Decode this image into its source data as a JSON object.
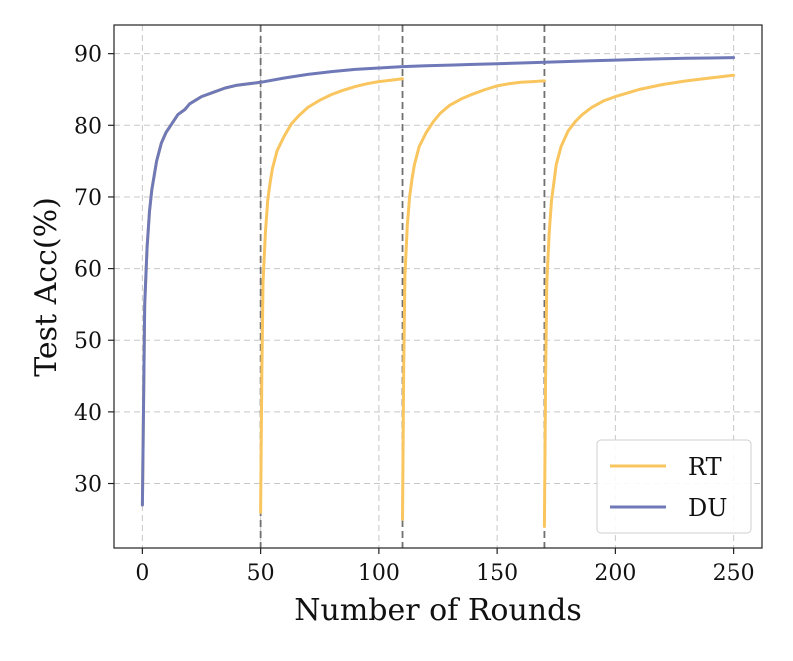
{
  "chart_data": {
    "type": "line",
    "title": "",
    "xlabel": "Number of Rounds",
    "ylabel": "Test Acc(%)",
    "xlim": [
      -12,
      262
    ],
    "ylim": [
      21,
      94
    ],
    "xticks": [
      0,
      50,
      100,
      150,
      200,
      250
    ],
    "yticks": [
      30,
      40,
      50,
      60,
      70,
      80,
      90
    ],
    "grid": true,
    "legend_position": "bottom-right",
    "vertical_lines": [
      50,
      110,
      170
    ],
    "series": [
      {
        "name": "RT",
        "color": "#F9C55F",
        "segments": [
          {
            "x": [
              0,
              1,
              2,
              3,
              4,
              5,
              6,
              8,
              10,
              12,
              15,
              18,
              20,
              25,
              30,
              35,
              40,
              45,
              50
            ],
            "y": [
              27,
              55,
              63,
              68,
              71,
              73,
              75,
              77.5,
              79,
              80,
              81.5,
              82.2,
              83,
              84,
              84.6,
              85.2,
              85.6,
              85.8,
              86
            ]
          },
          {
            "x": [
              50,
              50.5,
              51,
              52,
              53,
              54,
              55,
              57,
              60,
              63,
              66,
              70,
              75,
              80,
              85,
              90,
              95,
              100,
              105,
              110
            ],
            "y": [
              26,
              45,
              58,
              65,
              69.5,
              72,
              74,
              76.5,
              78.5,
              80.2,
              81.3,
              82.5,
              83.5,
              84.3,
              84.9,
              85.4,
              85.8,
              86.1,
              86.3,
              86.5
            ]
          },
          {
            "x": [
              110,
              110.5,
              111,
              112,
              113,
              114,
              115,
              117,
              120,
              123,
              126,
              130,
              135,
              140,
              145,
              150,
              155,
              160,
              165,
              170
            ],
            "y": [
              25,
              46,
              59,
              66,
              70,
              72.5,
              74.5,
              77,
              79,
              80.5,
              81.7,
              82.8,
              83.7,
              84.4,
              85,
              85.5,
              85.8,
              86,
              86.1,
              86.2
            ]
          },
          {
            "x": [
              170,
              170.5,
              171,
              172,
              173,
              174,
              175,
              177,
              180,
              183,
              186,
              190,
              195,
              200,
              210,
              220,
              230,
              240,
              250
            ],
            "y": [
              24,
              45,
              58,
              65,
              69.5,
              72,
              74.5,
              77,
              79.2,
              80.5,
              81.5,
              82.5,
              83.4,
              84,
              85,
              85.7,
              86.2,
              86.6,
              87
            ]
          }
        ]
      },
      {
        "name": "DU",
        "color": "#6F79B8",
        "segments": [
          {
            "x": [
              0,
              1,
              2,
              3,
              4,
              5,
              6,
              8,
              10,
              12,
              15,
              18,
              20,
              25,
              30,
              35,
              40,
              45,
              50,
              60,
              70,
              80,
              90,
              100,
              110,
              120,
              130,
              140,
              150,
              160,
              170,
              180,
              190,
              200,
              210,
              220,
              230,
              240,
              250
            ],
            "y": [
              27,
              55,
              63,
              68,
              71,
              73,
              75,
              77.5,
              79,
              80,
              81.5,
              82.2,
              83,
              84,
              84.6,
              85.2,
              85.6,
              85.8,
              86,
              86.6,
              87.1,
              87.5,
              87.8,
              88,
              88.2,
              88.3,
              88.4,
              88.5,
              88.6,
              88.7,
              88.8,
              88.9,
              89,
              89.1,
              89.2,
              89.3,
              89.35,
              89.4,
              89.45
            ]
          }
        ]
      }
    ]
  }
}
